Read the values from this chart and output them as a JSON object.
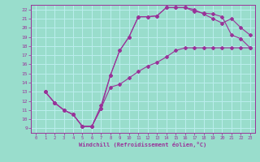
{
  "xlabel": "Windchill (Refroidissement éolien,°C)",
  "bg_color": "#99ddcc",
  "line_color": "#993399",
  "grid_color": "#bbeeee",
  "xlim": [
    -0.5,
    23.5
  ],
  "ylim": [
    8.5,
    22.5
  ],
  "xticks": [
    0,
    1,
    2,
    3,
    4,
    5,
    6,
    7,
    8,
    9,
    10,
    11,
    12,
    13,
    14,
    15,
    16,
    17,
    18,
    19,
    20,
    21,
    22,
    23
  ],
  "yticks": [
    9,
    10,
    11,
    12,
    13,
    14,
    15,
    16,
    17,
    18,
    19,
    20,
    21,
    22
  ],
  "curve1_x": [
    1,
    2,
    3,
    4,
    5,
    6,
    7,
    8,
    9,
    10,
    11,
    12,
    13,
    14,
    15,
    16,
    17,
    18,
    19,
    20,
    21,
    22,
    23
  ],
  "curve1_y": [
    13,
    11.8,
    11.0,
    10.5,
    9.2,
    9.2,
    11.2,
    14.8,
    17.5,
    19.0,
    21.2,
    21.2,
    21.3,
    22.2,
    22.2,
    22.2,
    21.8,
    21.6,
    21.5,
    21.2,
    19.2,
    18.8,
    17.8
  ],
  "curve2_x": [
    1,
    2,
    3,
    4,
    5,
    6,
    7,
    8,
    9,
    10,
    11,
    12,
    13,
    14,
    15,
    16,
    17,
    18,
    19,
    20,
    21,
    22,
    23
  ],
  "curve2_y": [
    13,
    11.8,
    11.0,
    10.5,
    9.2,
    9.2,
    11.2,
    13.5,
    13.8,
    14.5,
    15.2,
    15.8,
    16.2,
    16.8,
    17.5,
    17.8,
    17.8,
    17.8,
    17.8,
    17.8,
    17.8,
    17.8,
    17.8
  ],
  "curve3_x": [
    1,
    2,
    3,
    4,
    5,
    6,
    7,
    8,
    9,
    10,
    11,
    12,
    13,
    14,
    15,
    16,
    17,
    18,
    19,
    20,
    21,
    22,
    23
  ],
  "curve3_y": [
    13,
    11.8,
    11.0,
    10.5,
    9.2,
    9.2,
    11.5,
    14.8,
    17.5,
    19.0,
    21.2,
    21.2,
    21.3,
    22.2,
    22.2,
    22.2,
    22.0,
    21.5,
    21.0,
    20.5,
    21.0,
    20.0,
    19.2
  ]
}
